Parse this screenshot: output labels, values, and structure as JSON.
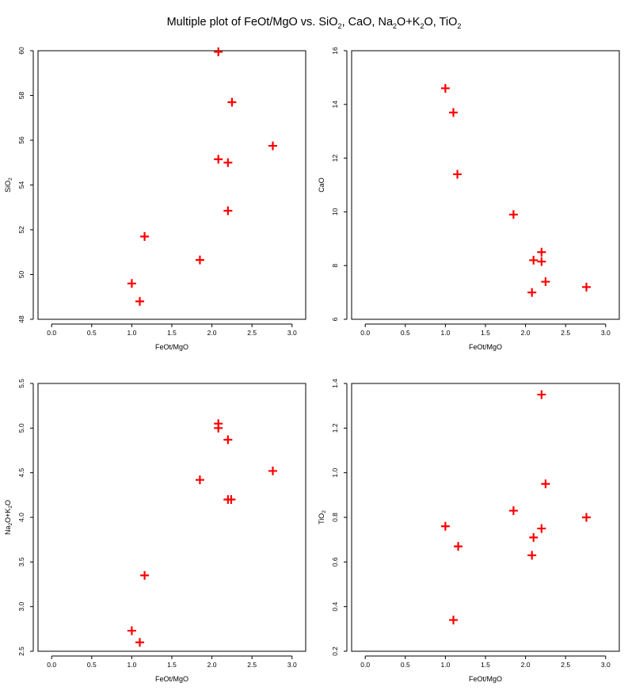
{
  "title": {
    "prefix": "Multiple plot of FeOt",
    "slash": "/",
    "suffix": "MgO vs. SiO",
    "sub2": "2",
    "rest1": ", CaO, Na",
    "sub3": "2",
    "rest2": "O",
    "plus": "+",
    "rest3": "K",
    "sub4": "2",
    "rest4": "O, TiO",
    "sub5": "2"
  },
  "colors": {
    "marker": "#ff0000",
    "axis": "#000000",
    "background": "#ffffff"
  },
  "chart_data": [
    {
      "type": "scatter",
      "xlabel": "FeOt/MgO",
      "ylabel": "SiO2",
      "ylabel_parts": {
        "main": "SiO",
        "sub": "2",
        "tail": ""
      },
      "xlim": [
        -0.17,
        3.17
      ],
      "ylim": [
        48,
        60
      ],
      "xticks": [
        "0.0",
        "0.5",
        "1.0",
        "1.5",
        "2.0",
        "2.5",
        "3.0"
      ],
      "yticks": [
        "48",
        "50",
        "52",
        "54",
        "56",
        "58",
        "60"
      ],
      "points": [
        [
          1.0,
          49.6
        ],
        [
          1.1,
          48.8
        ],
        [
          1.16,
          51.7
        ],
        [
          1.85,
          50.65
        ],
        [
          2.08,
          59.95
        ],
        [
          2.08,
          55.15
        ],
        [
          2.2,
          55.0
        ],
        [
          2.2,
          52.85
        ],
        [
          2.25,
          57.7
        ],
        [
          2.76,
          55.75
        ]
      ]
    },
    {
      "type": "scatter",
      "xlabel": "FeOt/MgO",
      "ylabel": "CaO",
      "ylabel_parts": {
        "main": "CaO",
        "sub": "",
        "tail": ""
      },
      "xlim": [
        -0.17,
        3.17
      ],
      "ylim": [
        6,
        16
      ],
      "xticks": [
        "0.0",
        "0.5",
        "1.0",
        "1.5",
        "2.0",
        "2.5",
        "3.0"
      ],
      "yticks": [
        "6",
        "8",
        "10",
        "12",
        "14",
        "16"
      ],
      "points": [
        [
          1.0,
          14.6
        ],
        [
          1.1,
          13.7
        ],
        [
          1.15,
          11.4
        ],
        [
          1.85,
          9.9
        ],
        [
          2.1,
          8.2
        ],
        [
          2.2,
          8.5
        ],
        [
          2.2,
          8.15
        ],
        [
          2.25,
          7.4
        ],
        [
          2.08,
          7.0
        ],
        [
          2.76,
          7.2
        ]
      ]
    },
    {
      "type": "scatter",
      "xlabel": "FeOt/MgO",
      "ylabel": "Na2O+K2O",
      "ylabel_parts": {
        "main": "Na",
        "sub": "2",
        "tail": "O+K",
        "sub2": "2",
        "tail2": "O"
      },
      "xlim": [
        -0.17,
        3.17
      ],
      "ylim": [
        2.5,
        5.5
      ],
      "xticks": [
        "0.0",
        "0.5",
        "1.0",
        "1.5",
        "2.0",
        "2.5",
        "3.0"
      ],
      "yticks": [
        "2.5",
        "3.0",
        "3.5",
        "4.0",
        "4.5",
        "5.0",
        "5.5"
      ],
      "points": [
        [
          1.0,
          2.73
        ],
        [
          1.1,
          2.6
        ],
        [
          1.16,
          3.35
        ],
        [
          1.85,
          4.42
        ],
        [
          2.08,
          5.05
        ],
        [
          2.08,
          5.0
        ],
        [
          2.2,
          4.87
        ],
        [
          2.2,
          4.2
        ],
        [
          2.24,
          4.2
        ],
        [
          2.76,
          4.52
        ]
      ]
    },
    {
      "type": "scatter",
      "xlabel": "FeOt/MgO",
      "ylabel": "TiO2",
      "ylabel_parts": {
        "main": "TiO",
        "sub": "2",
        "tail": ""
      },
      "xlim": [
        -0.17,
        3.17
      ],
      "ylim": [
        0.2,
        1.4
      ],
      "xticks": [
        "0.0",
        "0.5",
        "1.0",
        "1.5",
        "2.0",
        "2.5",
        "3.0"
      ],
      "yticks": [
        "0.2",
        "0.4",
        "0.6",
        "0.8",
        "1.0",
        "1.2",
        "1.4"
      ],
      "points": [
        [
          1.0,
          0.76
        ],
        [
          1.1,
          0.34
        ],
        [
          1.16,
          0.67
        ],
        [
          1.85,
          0.83
        ],
        [
          2.1,
          0.71
        ],
        [
          2.08,
          0.63
        ],
        [
          2.2,
          0.75
        ],
        [
          2.2,
          1.35
        ],
        [
          2.25,
          0.95
        ],
        [
          2.76,
          0.8
        ]
      ]
    }
  ]
}
